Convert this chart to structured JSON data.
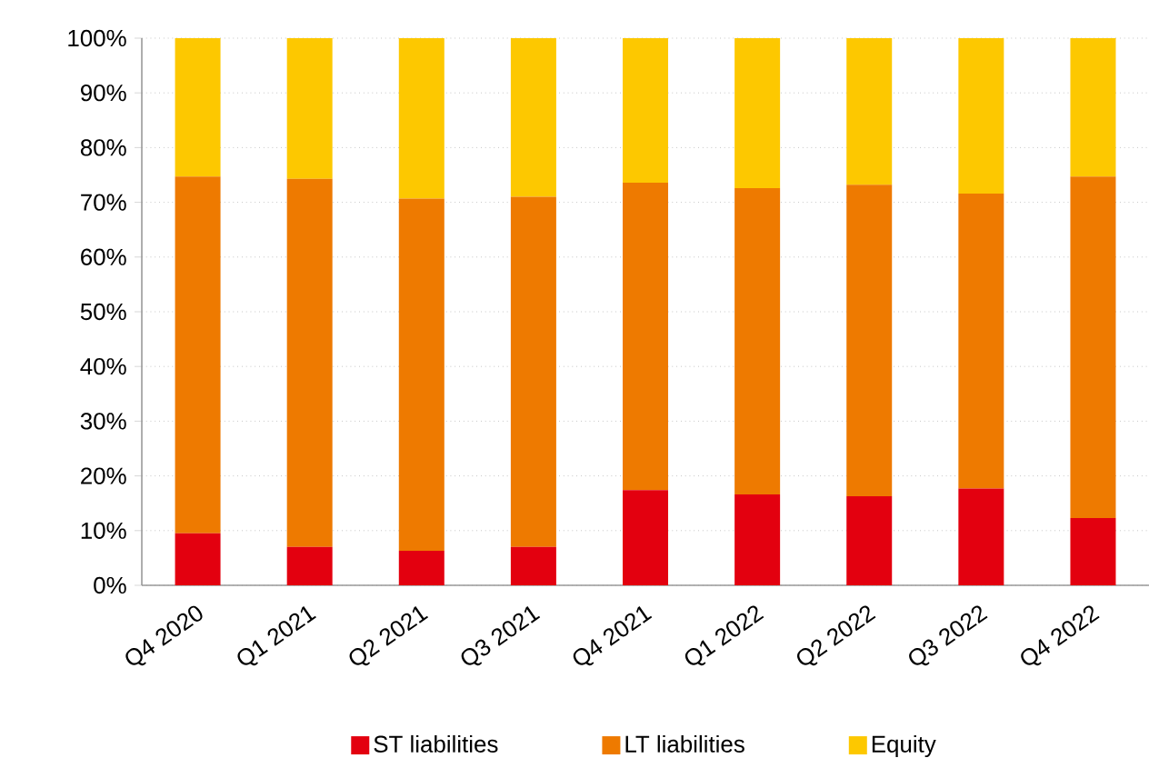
{
  "chart_data": {
    "type": "bar",
    "stacked": true,
    "categories": [
      "Q4 2020",
      "Q1 2021",
      "Q2 2021",
      "Q3 2021",
      "Q4 2021",
      "Q1 2022",
      "Q2 2022",
      "Q3 2022",
      "Q4 2022"
    ],
    "series": [
      {
        "name": "ST liabilities",
        "color": "#e3000f",
        "values": [
          9.5,
          7.0,
          6.3,
          7.0,
          17.4,
          16.6,
          16.3,
          17.7,
          12.3
        ]
      },
      {
        "name": "LT liabilities",
        "color": "#ee7a00",
        "values": [
          65.2,
          67.3,
          64.4,
          64.0,
          56.2,
          56.0,
          56.9,
          53.9,
          62.4
        ]
      },
      {
        "name": "Equity",
        "color": "#fdc800",
        "values": [
          25.3,
          25.7,
          29.3,
          29.0,
          26.4,
          27.4,
          26.8,
          28.4,
          25.3
        ]
      }
    ],
    "ylim": [
      0,
      100
    ],
    "yticks": [
      {
        "value": 0,
        "label": "0%"
      },
      {
        "value": 10,
        "label": "10%"
      },
      {
        "value": 20,
        "label": "20%"
      },
      {
        "value": 30,
        "label": "30%"
      },
      {
        "value": 40,
        "label": "40%"
      },
      {
        "value": 50,
        "label": "50%"
      },
      {
        "value": 60,
        "label": "60%"
      },
      {
        "value": 70,
        "label": "70%"
      },
      {
        "value": 80,
        "label": "80%"
      },
      {
        "value": 90,
        "label": "90%"
      },
      {
        "value": 100,
        "label": "100%"
      }
    ],
    "grid": "y",
    "legend": "bottom"
  }
}
